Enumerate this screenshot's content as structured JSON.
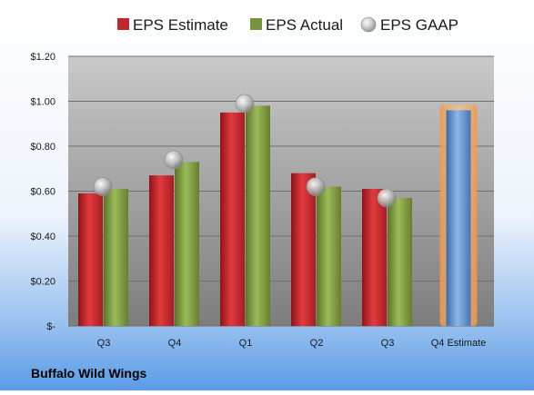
{
  "chart_data": {
    "type": "bar",
    "title": "",
    "xlabel": "",
    "ylabel": "",
    "categories": [
      "Q3",
      "Q4",
      "Q1",
      "Q2",
      "Q3",
      "Q4 Estimate"
    ],
    "series": [
      {
        "name": "EPS Estimate",
        "type": "bar",
        "color": "#c0272d",
        "values": [
          0.59,
          0.67,
          0.95,
          0.68,
          0.61,
          null
        ]
      },
      {
        "name": "EPS Actual",
        "type": "bar",
        "color": "#77933c",
        "values": [
          0.61,
          0.73,
          0.98,
          0.62,
          0.57,
          null
        ]
      },
      {
        "name": "EPS GAAP",
        "type": "scatter",
        "color": "#b8b8b8",
        "values": [
          0.62,
          0.74,
          0.99,
          0.62,
          0.57,
          null
        ]
      },
      {
        "name": "",
        "type": "bar",
        "color": "#4f81bd",
        "highlight": "#f79646",
        "values": [
          null,
          null,
          null,
          null,
          null,
          0.96
        ]
      }
    ],
    "ylim": [
      0,
      1.2
    ],
    "yticks": [
      0,
      0.2,
      0.4,
      0.6,
      0.8,
      1.0,
      1.2
    ],
    "ytick_labels": [
      "$-",
      "$0.20",
      "$0.40",
      "$0.60",
      "$0.80",
      "$1.00",
      "$1.20"
    ],
    "grid": true,
    "legend_position": "top"
  },
  "company": "Buffalo Wild Wings",
  "colors": {
    "background_top": "#ffffff",
    "background_bottom": "#5a9be6",
    "plot_top": "#c8c8c8",
    "plot_bottom": "#808080"
  }
}
